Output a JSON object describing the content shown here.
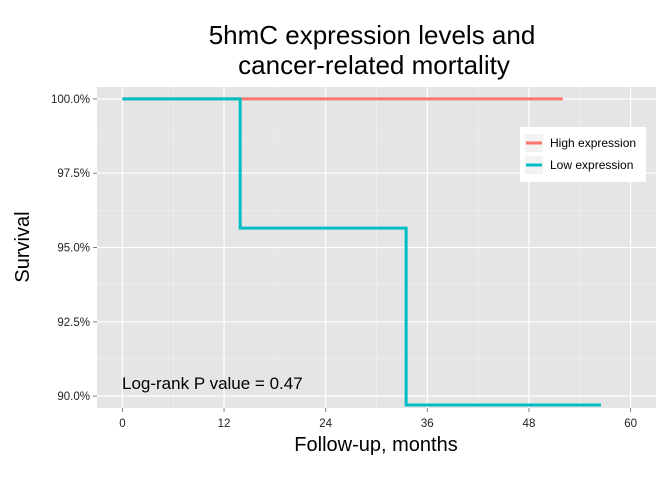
{
  "chart_data": {
    "type": "line",
    "title_lines": [
      "5hmC expression levels and",
      "cancer-related mortality"
    ],
    "xlabel": "Follow-up, months",
    "ylabel": "Survival",
    "xlim": [
      -3,
      63
    ],
    "ylim": [
      89.6,
      100.4
    ],
    "x_ticks": [
      0,
      12,
      24,
      36,
      48,
      60
    ],
    "x_tick_labels": [
      "0",
      "12",
      "24",
      "36",
      "48",
      "60"
    ],
    "y_ticks": [
      90.0,
      92.5,
      95.0,
      97.5,
      100.0
    ],
    "y_tick_labels": [
      "90.0%",
      "92.5%",
      "95.0%",
      "97.5%",
      "100.0%"
    ],
    "grid": true,
    "legend_position": "right",
    "annotation": "Log-rank P value = 0.47",
    "series": [
      {
        "name": "High expression",
        "color": "#F8766D",
        "step": true,
        "x": [
          0,
          52
        ],
        "y": [
          100.0,
          100.0
        ]
      },
      {
        "name": "Low expression",
        "color": "#00BFC4",
        "step": true,
        "x": [
          0,
          13.9,
          33.5,
          56.5
        ],
        "y": [
          100.0,
          95.65,
          89.7,
          89.7
        ]
      }
    ]
  }
}
